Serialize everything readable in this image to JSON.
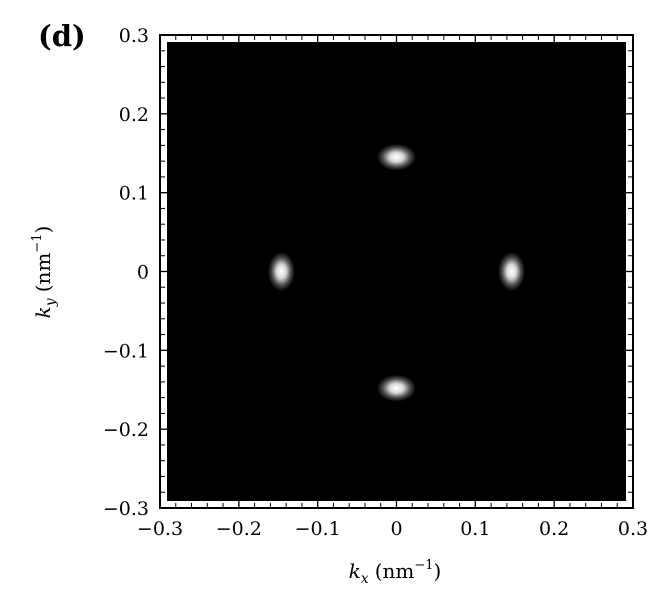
{
  "panel_label": "(d)",
  "chart_data": {
    "type": "heatmap",
    "title": "",
    "xlabel": "k",
    "xlabel_sub": "x",
    "xlabel_unit": "(nm",
    "xlabel_unit_sup": "−1",
    "ylabel": "k",
    "ylabel_sub": "y",
    "ylabel_unit": "(nm",
    "ylabel_unit_sup": "−1",
    "xlim": [
      -0.3,
      0.3
    ],
    "ylim": [
      -0.3,
      0.3
    ],
    "x_ticks": [
      -0.3,
      -0.2,
      -0.1,
      0,
      0.1,
      0.2,
      0.3
    ],
    "x_tick_labels": [
      "−0.3",
      "−0.2",
      "−0.1",
      "0",
      "0.1",
      "0.2",
      "0.3"
    ],
    "y_ticks": [
      -0.3,
      -0.2,
      -0.1,
      0,
      0.1,
      0.2,
      0.3
    ],
    "y_tick_labels": [
      "−0.3",
      "−0.2",
      "−0.1",
      "0",
      "0.1",
      "0.2",
      "0.3"
    ],
    "background_color": "#000000",
    "spot_color": "#ffffff",
    "spots": [
      {
        "x": 0.0,
        "y": 0.145,
        "sx": 0.016,
        "sy": 0.011
      },
      {
        "x": -0.146,
        "y": 0.0,
        "sx": 0.011,
        "sy": 0.016
      },
      {
        "x": 0.146,
        "y": 0.0,
        "sx": 0.011,
        "sy": 0.016
      },
      {
        "x": 0.0,
        "y": -0.148,
        "sx": 0.016,
        "sy": 0.011
      }
    ],
    "grid": false
  }
}
